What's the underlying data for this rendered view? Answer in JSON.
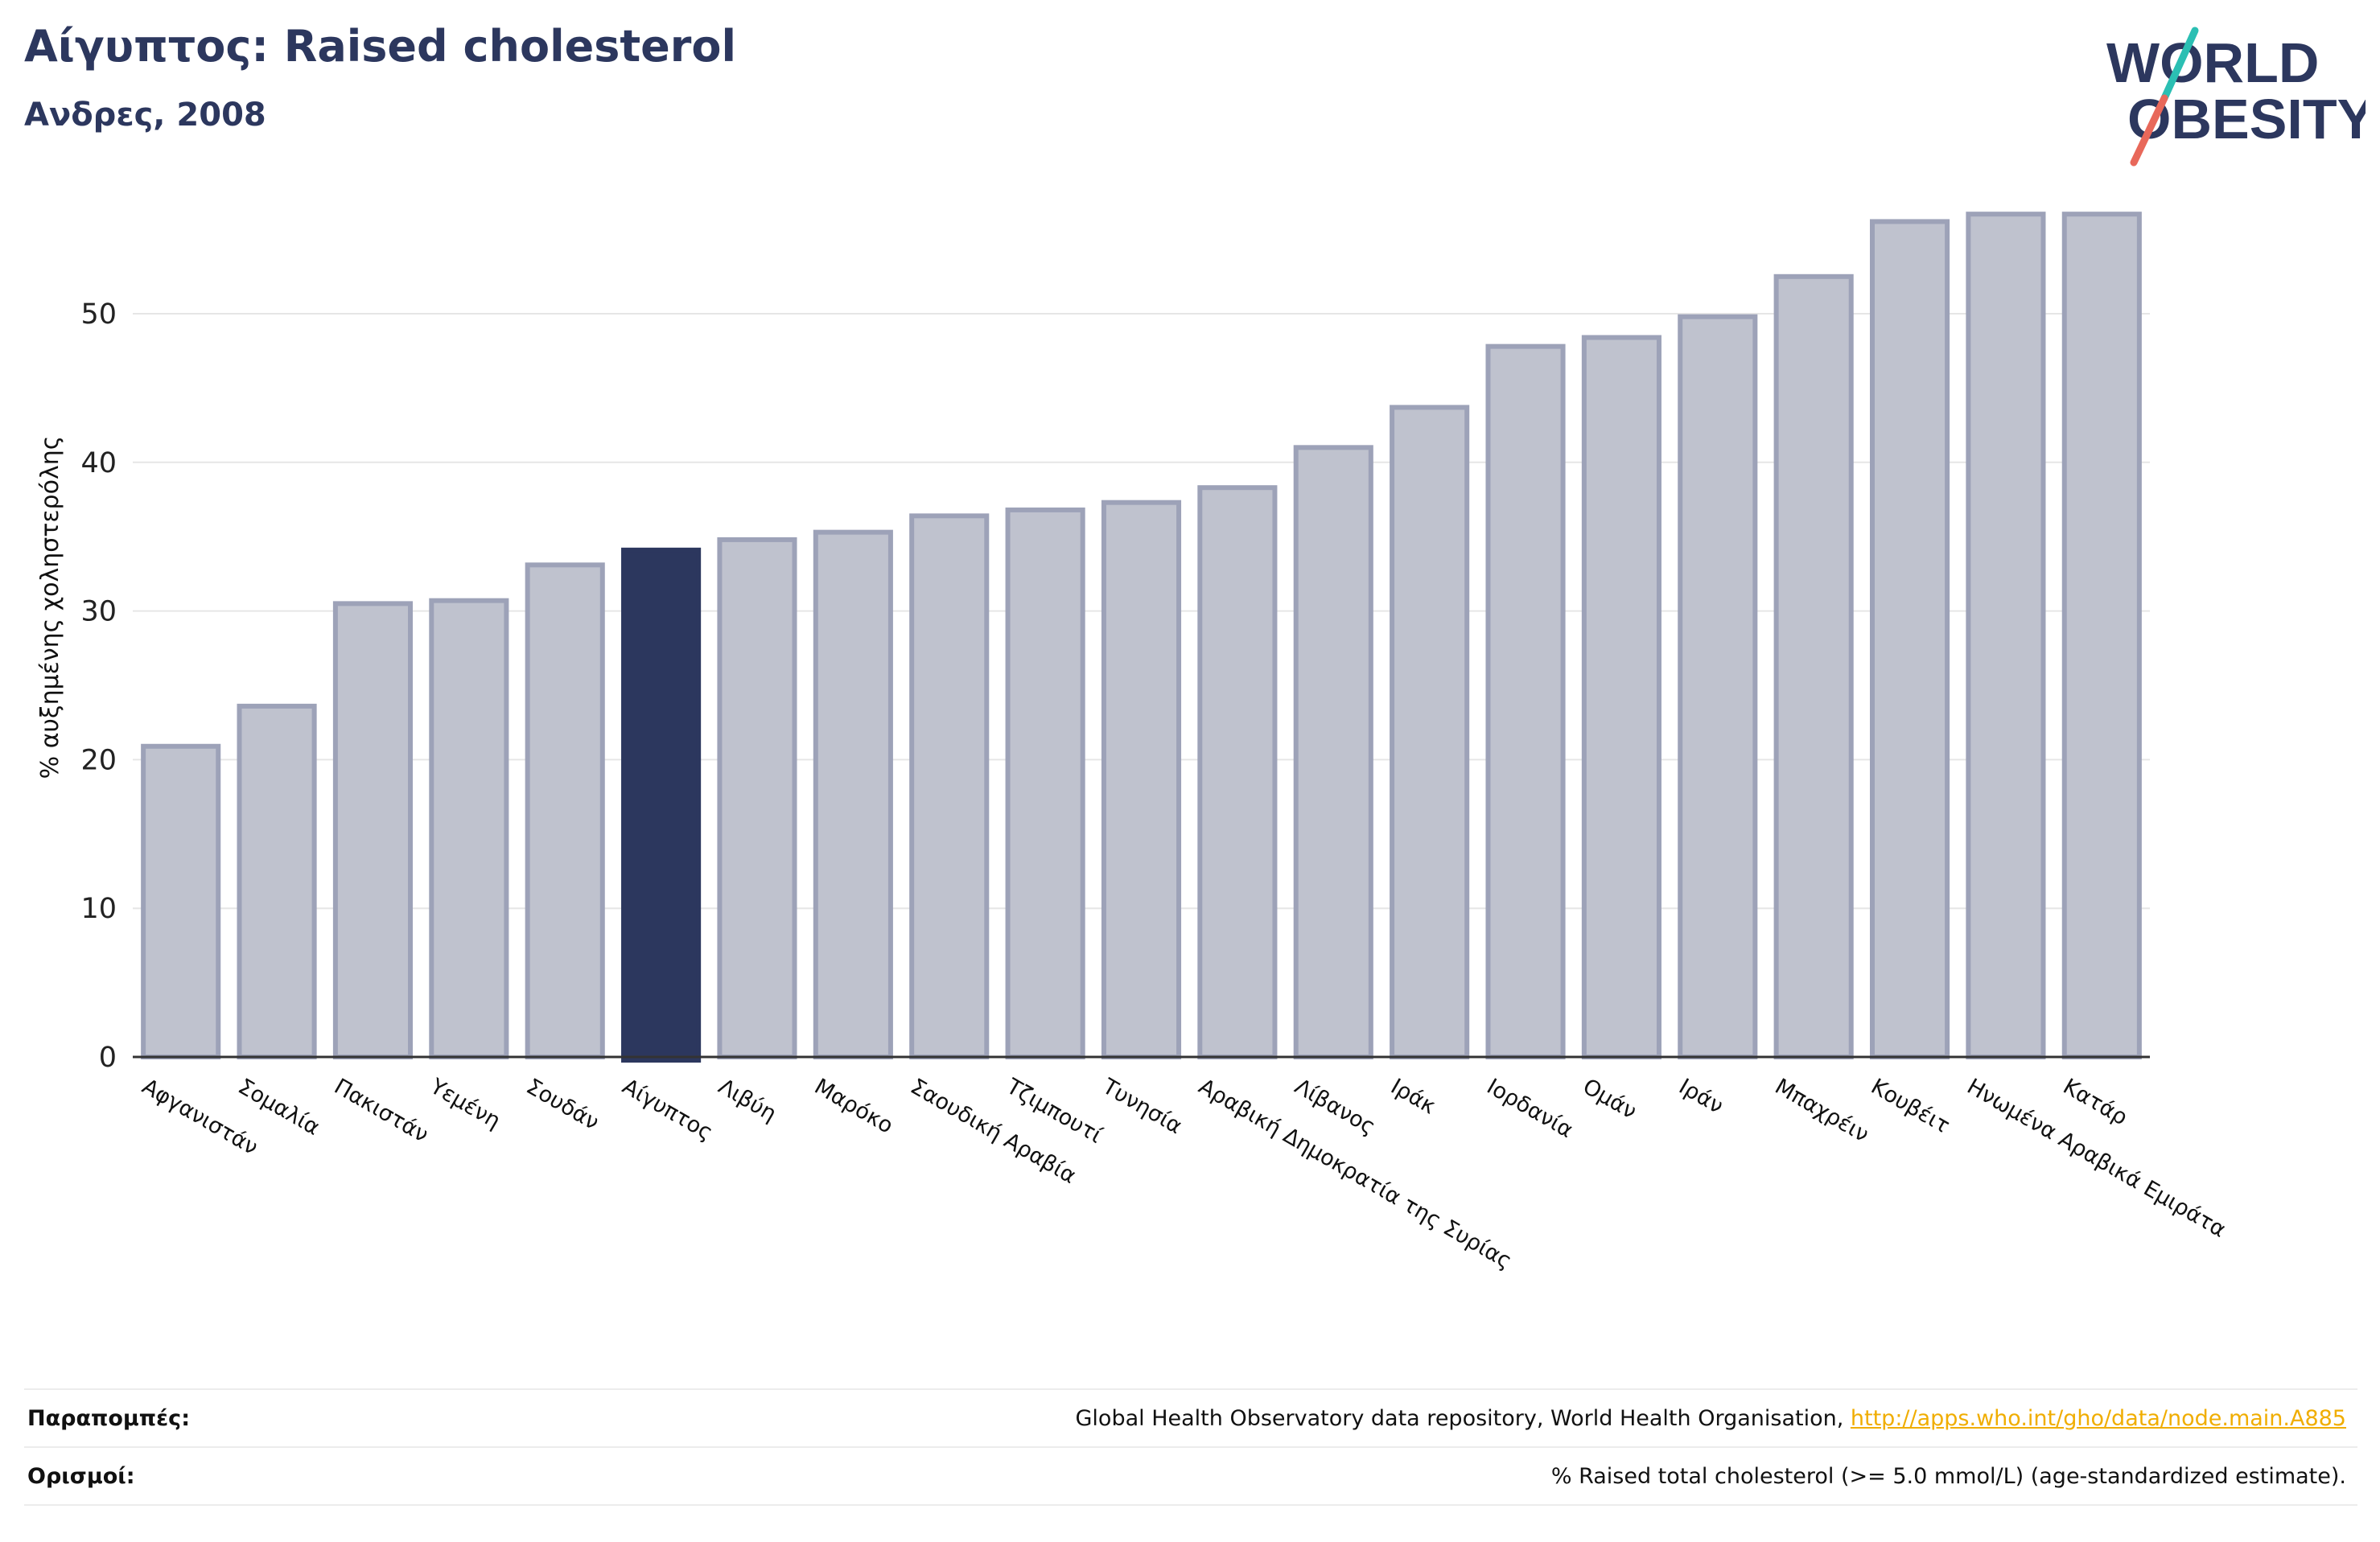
{
  "header": {
    "title": "Αίγυπτος: Raised cholesterol",
    "subtitle": "Ανδρες, 2008",
    "logo_line1": "WORLD",
    "logo_line2": "OBESITY"
  },
  "colors": {
    "highlight": "#2c375e",
    "bar_fill": "#bfc2ce",
    "bar_edge": "#9da2b8",
    "accent_teal": "#2bbfb3",
    "accent_red": "#e8685a",
    "link": "#f0ad00"
  },
  "chart_data": {
    "type": "bar",
    "title": "Αίγυπτος: Raised cholesterol",
    "subtitle": "Ανδρες, 2008",
    "xlabel": "",
    "ylabel": "% αυξημένης χοληστερόλης",
    "ylim": [
      0,
      57
    ],
    "yticks": [
      0,
      10,
      20,
      30,
      40,
      50
    ],
    "grid": true,
    "highlight": "Αίγυπτος",
    "categories": [
      "Αφγανιστάν",
      "Σομαλία",
      "Πακιστάν",
      "Υεμένη",
      "Σουδάν",
      "Αίγυπτος",
      "Λιβύη",
      "Μαρόκο",
      "Σαουδική Αραβία",
      "Τζιμπουτί",
      "Τυνησία",
      "Αραβική Δημοκρατία της Συρίας",
      "Λίβανος",
      "Ιράκ",
      "Ιορδανία",
      "Ομάν",
      "Ιράν",
      "Μπαχρέιν",
      "Κουβέιτ",
      "Ηνωμένα Αραβικά Εμιράτα",
      "Κατάρ"
    ],
    "values": [
      20.9,
      23.6,
      30.5,
      30.7,
      33.1,
      34.1,
      34.8,
      35.3,
      36.4,
      36.8,
      37.3,
      38.3,
      41.0,
      43.7,
      47.8,
      48.4,
      49.8,
      52.5,
      56.2,
      56.7,
      56.7
    ]
  },
  "footer": {
    "refs_label": "Παραπομπές:",
    "refs_text": "Global Health Observatory data repository, World Health Organisation, ",
    "refs_link": "http://apps.who.int/gho/data/node.main.A885",
    "defs_label": "Ορισμοί:",
    "defs_text": "% Raised total cholesterol (>= 5.0 mmol/L) (age-standardized estimate)."
  }
}
